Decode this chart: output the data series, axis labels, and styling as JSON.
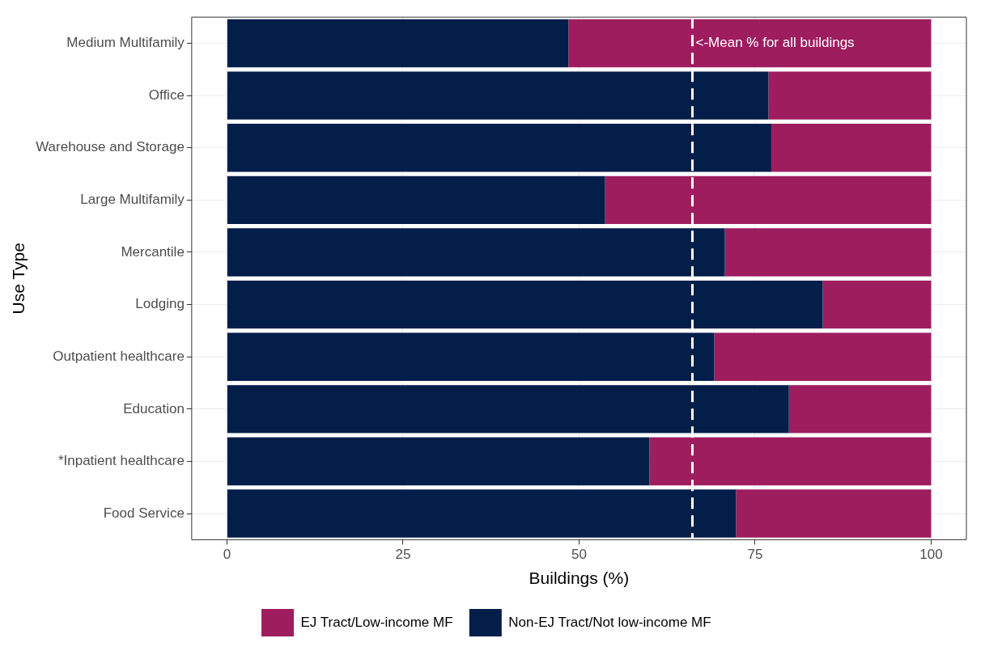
{
  "chart_data": {
    "type": "bar",
    "orientation": "horizontal",
    "stacked": true,
    "categories": [
      "Medium Multifamily",
      "Office",
      "Warehouse and Storage",
      "Large Multifamily",
      "Mercantile",
      "Lodging",
      "Outpatient healthcare",
      "Education",
      "*Inpatient healthcare",
      "Food Service"
    ],
    "series": [
      {
        "name": "Non-EJ Tract/Not low-income MF",
        "color": "#041e4a",
        "values": [
          48.5,
          76.9,
          77.3,
          53.7,
          70.7,
          84.6,
          69.2,
          79.8,
          60.0,
          72.3
        ]
      },
      {
        "name": "EJ Tract/Low-income MF",
        "color": "#9e1d5f",
        "values": [
          51.5,
          23.1,
          22.7,
          46.3,
          29.3,
          15.4,
          30.8,
          20.2,
          40.0,
          27.7
        ]
      }
    ],
    "xlabel": "Buildings (%)",
    "ylabel": "Use Type",
    "xlim": [
      -5,
      105
    ],
    "xticks": [
      0,
      25,
      50,
      75,
      100
    ],
    "ref_lines": [
      {
        "axis": "x",
        "value": 66.1,
        "label": "<-Mean % for all buildings",
        "color": "#ffffff",
        "line_style": "dashed"
      }
    ],
    "grid": true,
    "legend": "bottom"
  }
}
